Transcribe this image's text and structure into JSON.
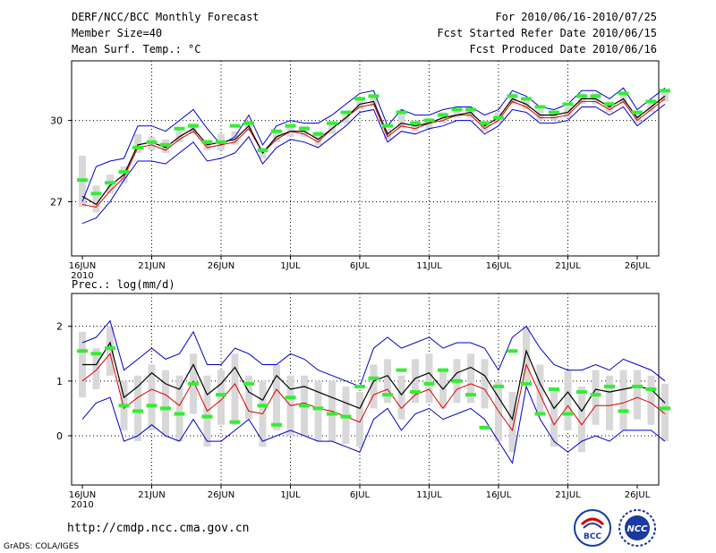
{
  "header": {
    "title": "DERF/NCC/BCC Monthly Forecast",
    "member_size": "Member Size=40",
    "variable": "Mean Surf. Temp.: °C",
    "forecast_range": "For 2010/06/16-2010/07/25",
    "refer_date": "Fcst Started Refer Date 2010/06/15",
    "produced_date": "Fcst Produced Date 2010/06/16"
  },
  "footer": {
    "url": "http://cmdp.ncc.cma.gov.cn",
    "grads": "GrADS: COLA/IGES",
    "logo1_text": "BCC",
    "logo2_text": "NCC"
  },
  "colors": {
    "max_min": "#0000cc",
    "ensemble_mean": "#000000",
    "median": "#dd0000",
    "analog": "#33ee33",
    "box": "#d8d8d8"
  },
  "chart_data": [
    {
      "type": "line",
      "title": "",
      "ylabel": "",
      "ylim": [
        25,
        32.2
      ],
      "yticks": [
        27,
        30
      ],
      "xtick_labels": [
        "16JUN",
        "21JUN",
        "26JUN",
        "1JUL",
        "6JUL",
        "11JUL",
        "16JUL",
        "21JUL",
        "26JUL"
      ],
      "year_label": "2010",
      "series": [
        {
          "name": "max",
          "values": [
            27.0,
            28.3,
            28.5,
            28.6,
            29.8,
            29.8,
            29.6,
            30.0,
            30.4,
            29.7,
            29.1,
            29.4,
            30.2,
            29.1,
            29.8,
            30.0,
            29.9,
            29.9,
            30.2,
            30.6,
            31.0,
            31.1,
            29.8,
            30.4,
            30.2,
            30.2,
            30.4,
            30.5,
            30.5,
            30.2,
            30.4,
            31.1,
            30.9,
            30.5,
            30.4,
            30.6,
            31.1,
            31.1,
            30.8,
            31.2,
            30.4,
            30.8,
            31.2
          ]
        },
        {
          "name": "min",
          "values": [
            26.2,
            26.4,
            27.0,
            27.8,
            28.5,
            28.5,
            28.4,
            28.8,
            29.2,
            28.5,
            28.6,
            28.8,
            29.4,
            28.4,
            29.0,
            29.3,
            29.2,
            29.0,
            29.4,
            29.8,
            30.3,
            30.4,
            29.2,
            29.6,
            29.5,
            29.7,
            29.8,
            30.0,
            30.0,
            29.5,
            29.8,
            30.4,
            30.3,
            29.9,
            29.9,
            30.0,
            30.5,
            30.5,
            30.2,
            30.5,
            29.8,
            30.2,
            30.6
          ]
        },
        {
          "name": "ensemble_mean",
          "values": [
            27.2,
            26.9,
            27.6,
            28.0,
            29.1,
            29.2,
            29.0,
            29.4,
            29.7,
            29.1,
            29.2,
            29.3,
            29.8,
            28.8,
            29.4,
            29.6,
            29.6,
            29.3,
            29.7,
            30.1,
            30.6,
            30.7,
            29.5,
            29.9,
            29.8,
            29.9,
            30.1,
            30.2,
            30.3,
            29.8,
            30.1,
            30.8,
            30.6,
            30.2,
            30.2,
            30.3,
            30.8,
            30.8,
            30.5,
            30.8,
            30.1,
            30.5,
            30.9
          ]
        },
        {
          "name": "median",
          "values": [
            26.9,
            26.8,
            27.4,
            27.9,
            29.0,
            29.1,
            28.9,
            29.3,
            29.6,
            29.0,
            29.1,
            29.2,
            29.7,
            28.8,
            29.3,
            29.6,
            29.5,
            29.2,
            29.7,
            30.1,
            30.5,
            30.6,
            29.4,
            29.8,
            29.7,
            29.9,
            30.0,
            30.2,
            30.2,
            29.7,
            30.0,
            30.7,
            30.5,
            30.1,
            30.1,
            30.2,
            30.7,
            30.7,
            30.4,
            30.7,
            30.0,
            30.4,
            30.8
          ]
        },
        {
          "name": "analog",
          "values": [
            27.8,
            27.3,
            27.7,
            28.1,
            29.0,
            29.2,
            29.1,
            29.7,
            29.8,
            29.2,
            29.2,
            29.8,
            29.9,
            28.9,
            29.6,
            29.8,
            29.7,
            29.5,
            29.9,
            30.3,
            30.8,
            30.9,
            29.8,
            30.3,
            29.9,
            30.0,
            30.2,
            30.4,
            30.4,
            29.9,
            30.1,
            30.9,
            30.8,
            30.5,
            30.3,
            30.6,
            30.9,
            30.9,
            30.6,
            31.0,
            30.3,
            30.7,
            31.1
          ]
        }
      ],
      "box_low": [
        26.8,
        26.6,
        27.3,
        27.7,
        28.8,
        28.9,
        28.8,
        29.2,
        29.5,
        28.9,
        28.9,
        29.1,
        29.6,
        28.6,
        29.2,
        29.4,
        29.4,
        29.1,
        29.5,
        29.9,
        30.4,
        30.5,
        29.3,
        29.7,
        29.6,
        29.7,
        29.9,
        30.1,
        30.1,
        29.6,
        29.9,
        30.6,
        30.4,
        30.0,
        30.0,
        30.1,
        30.6,
        30.6,
        30.3,
        30.6,
        29.9,
        30.3,
        30.7
      ],
      "box_high": [
        28.7,
        27.6,
        28.0,
        28.3,
        29.5,
        29.4,
        29.3,
        29.7,
        29.9,
        29.3,
        29.5,
        29.6,
        30.0,
        29.0,
        29.6,
        29.8,
        29.8,
        29.6,
        29.9,
        30.3,
        30.8,
        30.9,
        29.7,
        30.4,
        30.0,
        30.1,
        30.3,
        30.4,
        30.5,
        30.0,
        30.3,
        31.0,
        30.8,
        30.4,
        30.3,
        30.5,
        31.0,
        31.0,
        30.7,
        31.0,
        30.3,
        30.7,
        31.1
      ]
    },
    {
      "type": "line",
      "title": "Prec.: log(mm/d)",
      "ylabel": "Prec.: log(mm/d)",
      "ylim": [
        -0.9,
        2.6
      ],
      "yticks": [
        0,
        1,
        2
      ],
      "xtick_labels": [
        "16JUN",
        "21JUN",
        "26JUN",
        "1JUL",
        "6JUL",
        "11JUL",
        "16JUL",
        "21JUL",
        "26JUL"
      ],
      "year_label": "2010",
      "series": [
        {
          "name": "max",
          "values": [
            1.7,
            1.8,
            2.1,
            1.2,
            1.4,
            1.6,
            1.4,
            1.5,
            1.9,
            1.3,
            1.3,
            1.6,
            1.5,
            1.3,
            1.3,
            1.5,
            1.4,
            1.2,
            1.1,
            1.0,
            0.9,
            1.6,
            1.8,
            1.6,
            1.7,
            1.8,
            1.6,
            1.7,
            1.7,
            1.6,
            1.2,
            1.8,
            2.0,
            1.6,
            1.3,
            1.2,
            1.2,
            1.3,
            1.2,
            1.4,
            1.3,
            1.2,
            1.0
          ]
        },
        {
          "name": "min",
          "values": [
            0.3,
            0.6,
            0.7,
            -0.1,
            0.0,
            0.2,
            0.0,
            -0.1,
            0.3,
            -0.1,
            -0.1,
            0.1,
            0.3,
            -0.1,
            0.0,
            0.1,
            0.0,
            -0.1,
            -0.1,
            -0.2,
            -0.3,
            0.3,
            0.5,
            0.1,
            0.4,
            0.5,
            0.3,
            0.4,
            0.5,
            0.3,
            -0.1,
            -0.5,
            0.9,
            0.3,
            -0.1,
            -0.3,
            -0.1,
            0.0,
            -0.1,
            0.1,
            0.1,
            0.1,
            -0.1
          ]
        },
        {
          "name": "ensemble_mean",
          "values": [
            1.3,
            1.3,
            1.7,
            0.7,
            0.9,
            1.15,
            0.95,
            0.85,
            1.3,
            0.75,
            0.95,
            1.25,
            0.8,
            0.65,
            1.1,
            0.85,
            0.9,
            0.8,
            0.7,
            0.6,
            0.5,
            1.0,
            1.1,
            0.75,
            1.05,
            1.15,
            0.85,
            1.15,
            1.25,
            1.1,
            0.7,
            0.3,
            1.55,
            0.95,
            0.5,
            0.8,
            0.45,
            0.85,
            0.8,
            0.85,
            0.9,
            0.85,
            0.6
          ]
        },
        {
          "name": "median",
          "values": [
            1.0,
            1.2,
            1.5,
            0.5,
            0.7,
            0.85,
            0.75,
            0.55,
            1.0,
            0.45,
            0.65,
            0.95,
            0.45,
            0.4,
            0.85,
            0.55,
            0.6,
            0.5,
            0.45,
            0.35,
            0.25,
            0.75,
            0.85,
            0.5,
            0.75,
            0.85,
            0.5,
            0.85,
            0.95,
            0.85,
            0.45,
            0.1,
            1.3,
            0.75,
            0.2,
            0.55,
            0.2,
            0.55,
            0.55,
            0.6,
            0.7,
            0.6,
            0.4
          ]
        },
        {
          "name": "analog",
          "values": [
            1.55,
            1.5,
            1.6,
            0.55,
            0.45,
            0.55,
            0.5,
            0.4,
            0.95,
            0.35,
            0.75,
            0.25,
            0.95,
            0.55,
            0.2,
            0.7,
            0.55,
            0.5,
            0.4,
            0.35,
            0.9,
            1.05,
            0.75,
            1.2,
            0.8,
            0.95,
            1.2,
            1.0,
            0.75,
            0.15,
            0.9,
            1.55,
            0.95,
            0.4,
            0.85,
            0.4,
            0.8,
            0.75,
            0.9,
            0.45,
            0.9,
            0.85,
            0.5
          ]
        }
      ],
      "box_low": [
        0.7,
        0.85,
        1.1,
        0.1,
        -0.1,
        0.1,
        0.0,
        -0.1,
        0.4,
        -0.2,
        0.2,
        0.2,
        0.3,
        -0.2,
        0.1,
        0.0,
        0.0,
        -0.1,
        -0.1,
        -0.15,
        -0.2,
        0.5,
        0.6,
        0.3,
        0.6,
        0.6,
        0.5,
        0.6,
        0.6,
        0.5,
        -0.1,
        -0.3,
        1.0,
        0.4,
        -0.2,
        0.1,
        -0.3,
        0.2,
        0.1,
        0.1,
        0.3,
        0.2,
        -0.1
      ],
      "box_high": [
        1.9,
        1.6,
        2.0,
        1.0,
        1.1,
        1.3,
        1.2,
        1.1,
        1.5,
        1.1,
        1.2,
        1.5,
        1.1,
        1.0,
        1.3,
        1.1,
        1.1,
        1.0,
        1.0,
        0.9,
        0.8,
        1.3,
        1.4,
        1.1,
        1.4,
        1.5,
        1.2,
        1.4,
        1.5,
        1.4,
        1.0,
        0.8,
        2.0,
        1.3,
        0.8,
        1.2,
        0.9,
        1.2,
        1.1,
        1.2,
        1.2,
        1.1,
        0.95
      ]
    }
  ]
}
